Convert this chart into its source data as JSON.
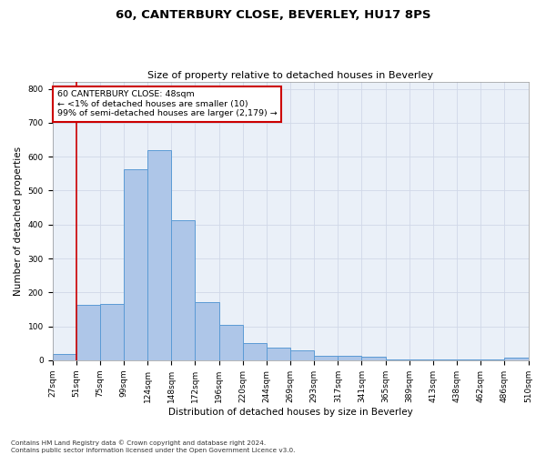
{
  "title": "60, CANTERBURY CLOSE, BEVERLEY, HU17 8PS",
  "subtitle": "Size of property relative to detached houses in Beverley",
  "xlabel": "Distribution of detached houses by size in Beverley",
  "ylabel": "Number of detached properties",
  "bar_values": [
    18,
    163,
    167,
    563,
    619,
    413,
    172,
    104,
    51,
    38,
    29,
    14,
    14,
    9,
    2,
    1,
    1,
    1,
    1,
    7
  ],
  "bar_labels": [
    "27sqm",
    "51sqm",
    "75sqm",
    "99sqm",
    "124sqm",
    "148sqm",
    "172sqm",
    "196sqm",
    "220sqm",
    "244sqm",
    "269sqm",
    "293sqm",
    "317sqm",
    "341sqm",
    "365sqm",
    "389sqm",
    "413sqm",
    "438sqm",
    "462sqm",
    "486sqm",
    "510sqm"
  ],
  "bar_color": "#aec6e8",
  "bar_edge_color": "#5b9bd5",
  "annotation_box_text": "60 CANTERBURY CLOSE: 48sqm\n← <1% of detached houses are smaller (10)\n99% of semi-detached houses are larger (2,179) →",
  "annotation_box_color": "#cc0000",
  "ylim": [
    0,
    820
  ],
  "yticks": [
    0,
    100,
    200,
    300,
    400,
    500,
    600,
    700,
    800
  ],
  "grid_color": "#d0d8e8",
  "background_color": "#eaf0f8",
  "footnote": "Contains HM Land Registry data © Crown copyright and database right 2024.\nContains public sector information licensed under the Open Government Licence v3.0.",
  "title_fontsize": 9.5,
  "subtitle_fontsize": 8,
  "axis_label_fontsize": 7.5,
  "tick_fontsize": 6.5,
  "annot_fontsize": 6.8,
  "footnote_fontsize": 5.2
}
